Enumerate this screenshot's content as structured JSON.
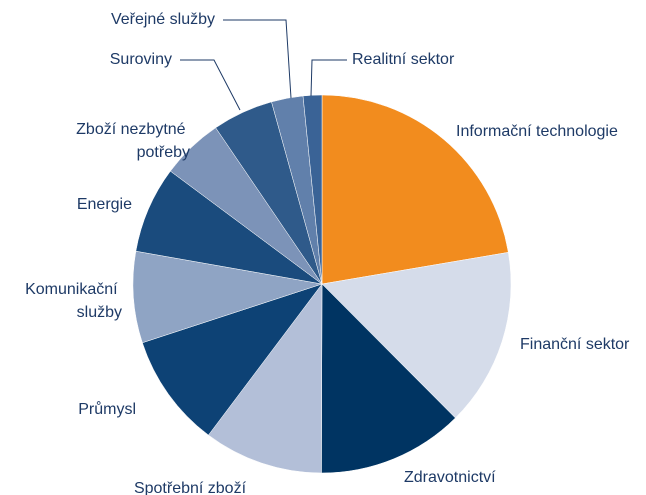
{
  "chart_data": {
    "type": "pie",
    "categories": [
      "Informační technologie",
      "Finanční sektor",
      "Zdravotnictví",
      "Spotřební zboží",
      "Průmysl",
      "Komunikační služby",
      "Energie",
      "Zboží nezbytné potřeby",
      "Suroviny",
      "Veřejné služby",
      "Realitní sektor"
    ],
    "values": [
      22.3,
      15.2,
      12.5,
      10.2,
      9.7,
      7.8,
      7.4,
      5.3,
      5.2,
      2.7,
      1.6
    ],
    "colors": [
      "#f28c1e",
      "#d5dcea",
      "#003462",
      "#b3bfd8",
      "#0d4275",
      "#8fa4c4",
      "#1a4b7d",
      "#7c93b8",
      "#2f5a8a",
      "#6180ab",
      "#3a6396"
    ]
  }
}
